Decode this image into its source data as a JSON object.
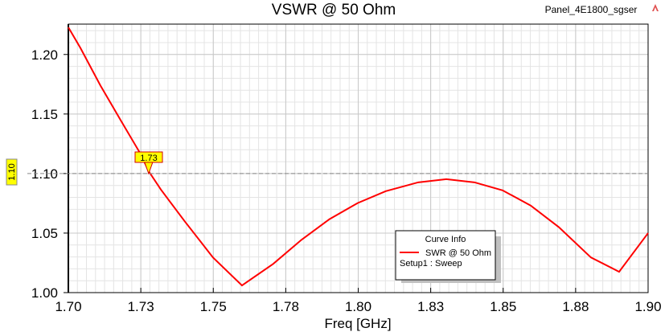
{
  "chart_data": {
    "type": "line",
    "title": "VSWR @ 50 Ohm",
    "project_label": "Panel_4E1800_sgser",
    "xlabel": "Freq [GHz]",
    "ylabel": "",
    "xlim": [
      1.7,
      1.9
    ],
    "ylim": [
      1.0,
      1.2255
    ],
    "xticks": [
      1.7,
      1.725,
      1.75,
      1.775,
      1.8,
      1.825,
      1.85,
      1.875,
      1.9
    ],
    "xtick_labels": [
      "1.70",
      "1.73",
      "1.75",
      "1.78",
      "1.80",
      "1.83",
      "1.85",
      "1.88",
      "1.90"
    ],
    "yticks": [
      1.0,
      1.05,
      1.1,
      1.15,
      1.2
    ],
    "ytick_labels": [
      "1.00",
      "1.05",
      "1.10",
      "1.15",
      "1.20"
    ],
    "grid": true,
    "series": [
      {
        "name": "SWR @ 50 Ohm",
        "color": "#ff0000",
        "x": [
          1.7,
          1.7042,
          1.7111,
          1.718,
          1.725,
          1.7277,
          1.7319,
          1.7402,
          1.7499,
          1.7599,
          1.7707,
          1.7804,
          1.7901,
          1.7998,
          1.8095,
          1.8207,
          1.8304,
          1.8401,
          1.8498,
          1.8595,
          1.8692,
          1.8803,
          1.89,
          1.9
        ],
        "y": [
          1.2228,
          1.2053,
          1.1738,
          1.145,
          1.1161,
          1.102,
          1.0866,
          1.0597,
          1.0295,
          1.006,
          1.0242,
          1.0443,
          1.0617,
          1.0752,
          1.0852,
          1.0926,
          1.0953,
          1.0926,
          1.0859,
          1.0731,
          1.055,
          1.0295,
          1.0175,
          1.05
        ]
      }
    ],
    "marker": {
      "x": 1.7277,
      "y": 1.1,
      "label": "1.73",
      "hline_label": "1.10"
    },
    "legend": {
      "title": "Curve Info",
      "entry": "SWR @ 50 Ohm",
      "subtitle": "Setup1 : Sweep",
      "placement": "bottom-right"
    }
  }
}
